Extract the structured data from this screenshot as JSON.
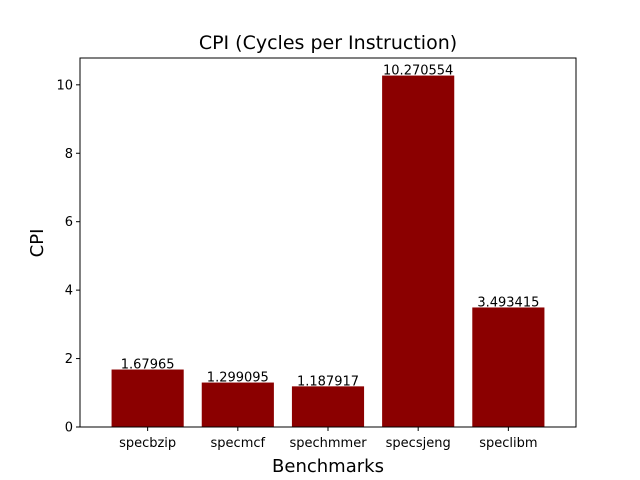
{
  "chart_data": {
    "type": "bar",
    "title": "CPI (Cycles per Instruction)",
    "xlabel": "Benchmarks",
    "ylabel": "CPI",
    "categories": [
      "specbzip",
      "specmcf",
      "spechmmer",
      "specsjeng",
      "speclibm"
    ],
    "values": [
      1.67965,
      1.299095,
      1.187917,
      10.270554,
      3.493415
    ],
    "value_labels": [
      "1.67965",
      "1.299095",
      "1.187917",
      "10.270554",
      "3.493415"
    ],
    "ylim": [
      0,
      10.784
    ],
    "yticks": [
      0,
      2,
      4,
      6,
      8,
      10
    ],
    "ytick_labels": [
      "0",
      "2",
      "4",
      "6",
      "8",
      "10"
    ],
    "bar_color": "#8b0000",
    "grid": false,
    "legend": "none"
  }
}
